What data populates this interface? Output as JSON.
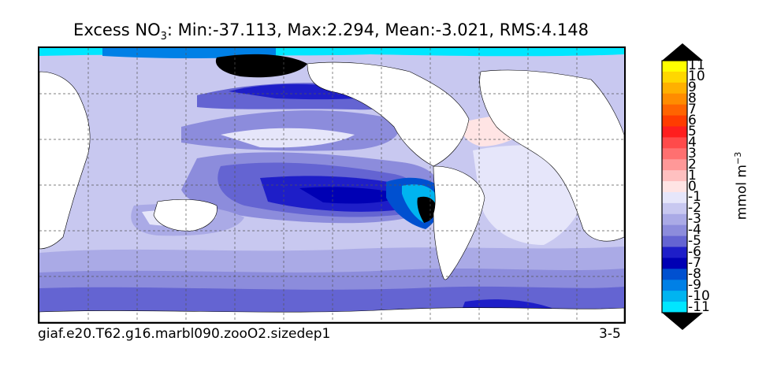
{
  "title": {
    "variable_main": "Excess NO",
    "variable_sub": "3",
    "stats": ": Min:-37.113, Max:2.294, Mean:-3.021, RMS:4.148"
  },
  "map": {
    "projection": "global cylindrical",
    "gridlines": "dashed",
    "land_color": "#ffffff",
    "missing_color": "#000000"
  },
  "caption": {
    "case_name": "giaf.e20.T62.g16.marbl090.zooO2.sizedep1",
    "years": "3-5"
  },
  "colorbar": {
    "unit_main": "mmol m",
    "unit_sup": "−3",
    "tick_labels": [
      "11",
      "10",
      "9",
      "8",
      "7",
      "6",
      "5",
      "4",
      "3",
      "2",
      "1",
      "0",
      "-1",
      "-2",
      "-3",
      "-4",
      "-5",
      "-6",
      "-7",
      "-8",
      "-9",
      "-10",
      "-11"
    ],
    "colors_top_to_bottom": [
      "#ffff00",
      "#ffd700",
      "#ffb000",
      "#ff8c00",
      "#ff6400",
      "#ff3c00",
      "#ff1e1e",
      "#ff4a4a",
      "#ff7070",
      "#ff9898",
      "#ffc0c0",
      "#ffe4e4",
      "#e6e6fa",
      "#c8c8f0",
      "#aaaae6",
      "#8c8cdc",
      "#6464d2",
      "#1e1ec8",
      "#0000b4",
      "#0050d0",
      "#0080e6",
      "#00b4f0",
      "#00e6ff"
    ],
    "over_color": "#000000",
    "under_color": "#000000"
  }
}
